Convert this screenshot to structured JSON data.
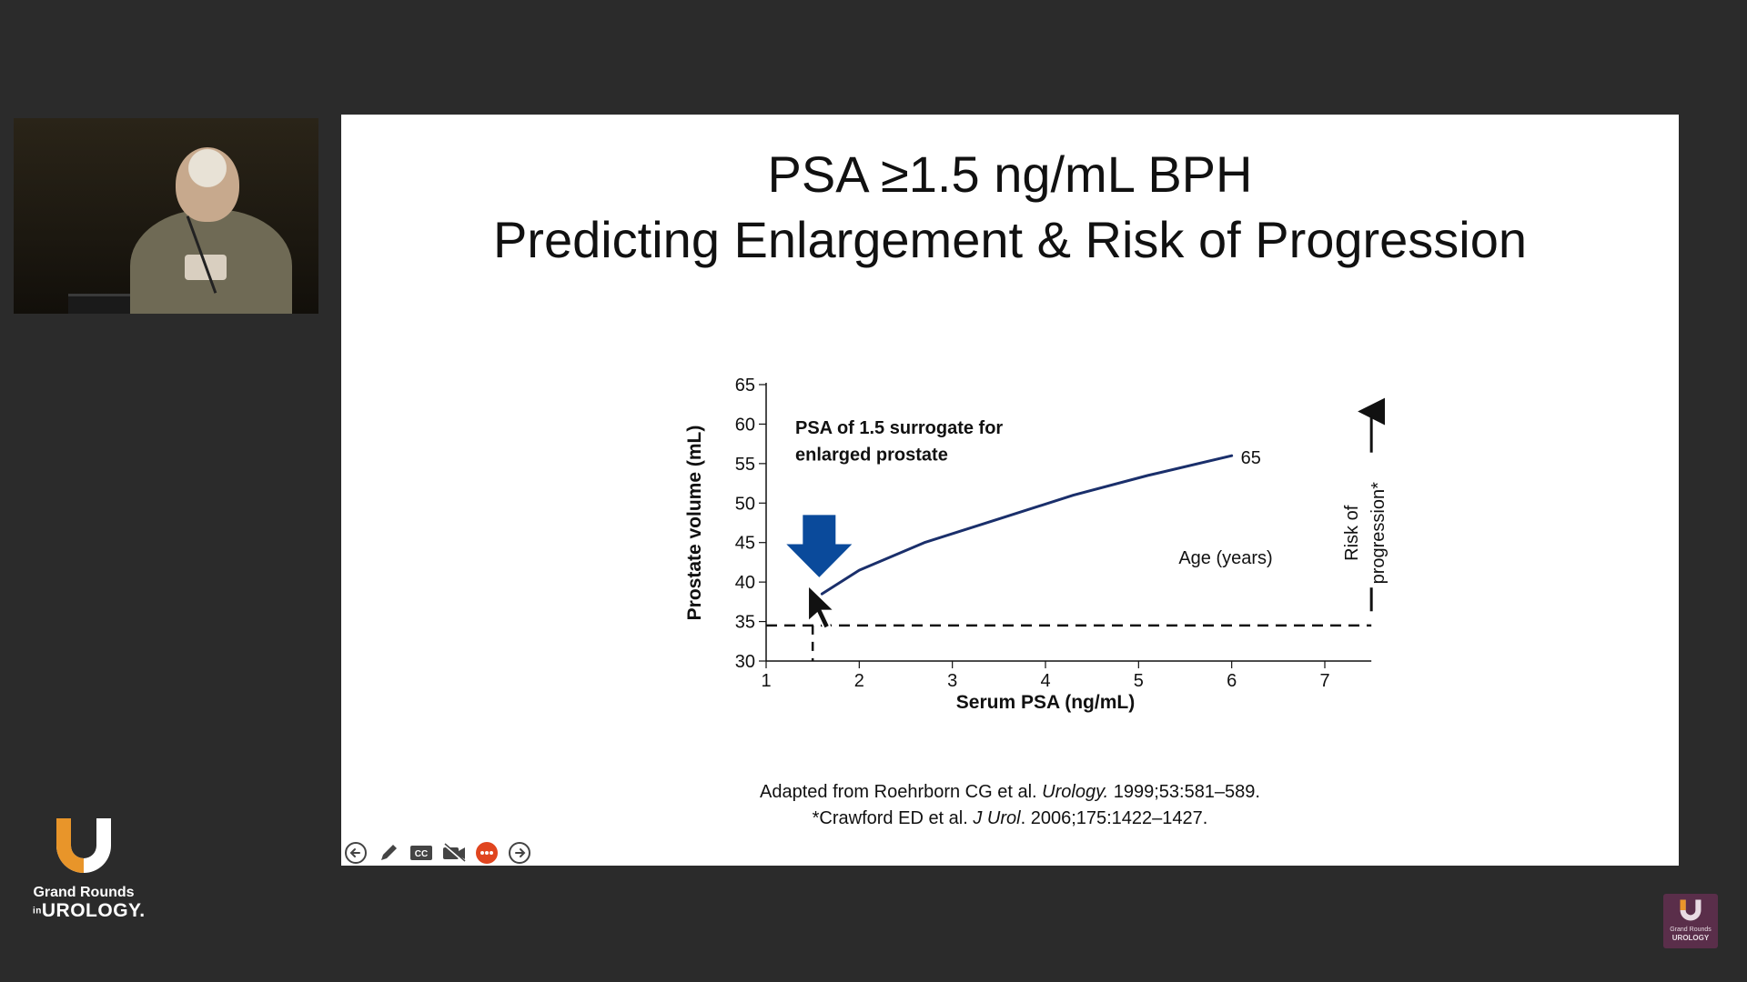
{
  "slide": {
    "title_line1": "PSA ≥1.5 ng/mL BPH",
    "title_line2": "Predicting Enlargement & Risk of Progression",
    "citation_1_prefix": "Adapted from Roehrborn CG et al. ",
    "citation_1_journal": "Urology.",
    "citation_1_suffix": " 1999;53:581–589.",
    "citation_2_prefix": "*Crawford ED et al. ",
    "citation_2_journal": "J Urol",
    "citation_2_suffix": ". 2006;175:1422–1427."
  },
  "chart_data": {
    "type": "line",
    "xlabel": "Serum PSA (ng/mL)",
    "ylabel": "Prostate volume (mL)",
    "xlim": [
      1,
      7.5
    ],
    "ylim": [
      30,
      65
    ],
    "x_ticks": [
      1,
      2,
      3,
      4,
      5,
      6,
      7
    ],
    "y_ticks": [
      30,
      35,
      40,
      45,
      50,
      55,
      60,
      65
    ],
    "series": [
      {
        "name": "65",
        "color": "#1a2f6b",
        "x": [
          1.6,
          2.0,
          2.7,
          3.5,
          4.3,
          5.1,
          6.0
        ],
        "y": [
          38.5,
          41.5,
          45.0,
          48.0,
          51.0,
          53.5,
          56.0
        ]
      }
    ],
    "threshold_y": 34.5,
    "threshold_x": 1.5,
    "annotations": {
      "arrow_label_line1": "PSA of 1.5 surrogate for",
      "arrow_label_line2": "enlarged prostate",
      "age_label": "Age (years)",
      "risk_label_line1": "Risk of",
      "risk_label_line2": "progression*",
      "arrow_color": "#0a4a9b"
    }
  },
  "toolbar": {
    "icons": [
      "back-arrow-icon",
      "pen-icon",
      "closed-captions-icon",
      "video-off-icon",
      "more-icon",
      "forward-arrow-icon"
    ],
    "cc_text": "CC"
  },
  "branding": {
    "logo_line1": "Grand Rounds",
    "logo_in": "in",
    "logo_line2": "UROLOGY.",
    "corner_line1": "Grand Rounds",
    "corner_line2": "UROLOGY",
    "accent_orange": "#e8952a"
  }
}
